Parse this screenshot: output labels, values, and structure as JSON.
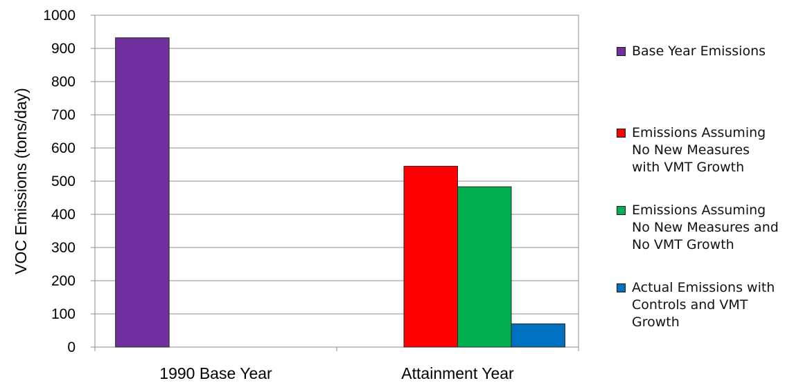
{
  "chart_data": {
    "type": "bar",
    "categories": [
      "1990 Base Year",
      "Attainment Year"
    ],
    "ylabel": "VOC Emissions (tons/day)",
    "ylim": [
      0,
      1000
    ],
    "yticks": [
      0,
      100,
      200,
      300,
      400,
      500,
      600,
      700,
      800,
      900,
      1000
    ],
    "grid": true,
    "legend_position": "right",
    "series": [
      {
        "name": "Base Year Emissions",
        "color": "#7030a0",
        "values": [
          932,
          null
        ]
      },
      {
        "name": "Emissions Assuming\nNo New Measures\nwith VMT Growth",
        "color": "#ff0000",
        "values": [
          null,
          545
        ]
      },
      {
        "name": "Emissions Assuming\nNo New Measures  and\nNo VMT Growth",
        "color": "#00b050",
        "values": [
          null,
          483
        ]
      },
      {
        "name": "Actual Emissions with\nControls and VMT\nGrowth",
        "color": "#0070c0",
        "values": [
          null,
          70
        ]
      }
    ]
  }
}
